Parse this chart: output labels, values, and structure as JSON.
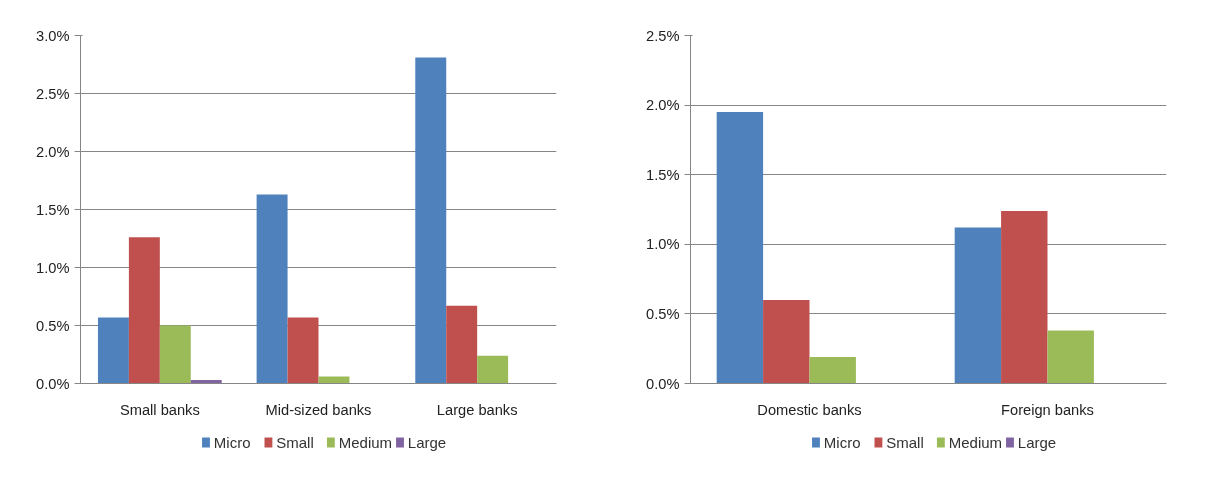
{
  "chart_data": [
    {
      "type": "bar",
      "categories": [
        "Small banks",
        "Mid-sized banks",
        "Large banks"
      ],
      "series": [
        {
          "name": "Micro",
          "color": "#4f81bd",
          "values": [
            0.57,
            1.63,
            2.81
          ]
        },
        {
          "name": "Small",
          "color": "#c0504d",
          "values": [
            1.26,
            0.57,
            0.67
          ]
        },
        {
          "name": "Medium",
          "color": "#9bbb59",
          "values": [
            0.5,
            0.06,
            0.24
          ]
        },
        {
          "name": "Large",
          "color": "#8064a2",
          "values": [
            0.03,
            0,
            0
          ]
        }
      ],
      "ylim": [
        0,
        3
      ],
      "yticks": [
        {
          "value": 0,
          "label": "0.0%"
        },
        {
          "value": 0.5,
          "label": "0.5%"
        },
        {
          "value": 1,
          "label": "1.0%"
        },
        {
          "value": 1.5,
          "label": "1.5%"
        },
        {
          "value": 2,
          "label": "2.0%"
        },
        {
          "value": 2.5,
          "label": "2.5%"
        },
        {
          "value": 3,
          "label": "3.0%"
        }
      ],
      "grid": "y",
      "legend": "bottom"
    },
    {
      "type": "bar",
      "categories": [
        "Domestic banks",
        "Foreign banks"
      ],
      "series": [
        {
          "name": "Micro",
          "color": "#4f81bd",
          "values": [
            1.95,
            1.12
          ]
        },
        {
          "name": "Small",
          "color": "#c0504d",
          "values": [
            0.6,
            1.24
          ]
        },
        {
          "name": "Medium",
          "color": "#9bbb59",
          "values": [
            0.19,
            0.38
          ]
        },
        {
          "name": "Large",
          "color": "#8064a2",
          "values": [
            0,
            0
          ]
        }
      ],
      "ylim": [
        0,
        2.5
      ],
      "yticks": [
        {
          "value": 0,
          "label": "0.0%"
        },
        {
          "value": 0.5,
          "label": "0.5%"
        },
        {
          "value": 1,
          "label": "1.0%"
        },
        {
          "value": 1.5,
          "label": "1.5%"
        },
        {
          "value": 2,
          "label": "2.0%"
        },
        {
          "value": 2.5,
          "label": "2.5%"
        }
      ],
      "grid": "y",
      "legend": "bottom"
    }
  ]
}
